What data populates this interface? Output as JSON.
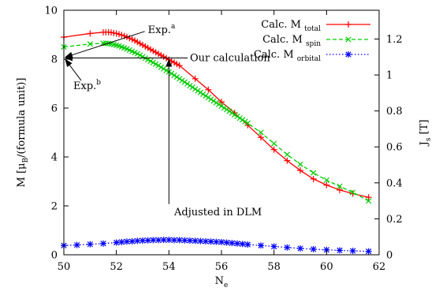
{
  "chart_data": {
    "type": "line",
    "xlabel": "N",
    "xlabel_sub": "e",
    "ylabel": "M [μ",
    "ylabel_sub": "B",
    "ylabel_tail": "/(formula unit)]",
    "y2label": "J",
    "y2label_sub": "s",
    "y2label_tail": " [T]",
    "xlim": [
      50,
      62
    ],
    "ylim": [
      0,
      10
    ],
    "y2lim": [
      0,
      1.36
    ],
    "xticks": [
      50,
      52,
      54,
      56,
      58,
      60,
      62
    ],
    "yticks": [
      0,
      2,
      4,
      6,
      8,
      10
    ],
    "y2ticks": [
      0,
      0.2,
      0.4,
      0.6,
      0.8,
      1,
      1.2
    ],
    "y2ticklabels": [
      "0",
      "0.2",
      "0.4",
      "0.6",
      "0.8",
      "1",
      "1.2"
    ],
    "grid": false,
    "legend_position": "top-right",
    "series": [
      {
        "name": "Calc. M",
        "name_sub": "total",
        "color": "#ff0000",
        "marker": "plus",
        "dash": "solid",
        "x": [
          50,
          51,
          51.5,
          51.6,
          51.7,
          51.8,
          51.9,
          52,
          52.1,
          52.2,
          52.3,
          52.4,
          52.5,
          52.6,
          52.7,
          52.8,
          52.9,
          53,
          53.1,
          53.2,
          53.3,
          53.4,
          53.5,
          53.6,
          53.7,
          53.8,
          53.9,
          54,
          54.1,
          54.2,
          54.3,
          54.4,
          55,
          55.5,
          56,
          56.5,
          57,
          57.5,
          58,
          58.5,
          59,
          59.5,
          60,
          60.5,
          61,
          61.6
        ],
        "y": [
          8.9,
          9.05,
          9.1,
          9.1,
          9.1,
          9.09,
          9.07,
          9.05,
          9.02,
          8.99,
          8.95,
          8.91,
          8.86,
          8.81,
          8.76,
          8.7,
          8.64,
          8.58,
          8.52,
          8.46,
          8.4,
          8.34,
          8.28,
          8.22,
          8.16,
          8.1,
          8.04,
          7.98,
          7.92,
          7.86,
          7.8,
          7.74,
          7.2,
          6.75,
          6.25,
          5.8,
          5.3,
          4.8,
          4.3,
          3.85,
          3.45,
          3.1,
          2.85,
          2.65,
          2.5,
          2.35
        ]
      },
      {
        "name": "Calc. M",
        "name_sub": "spin",
        "color": "#00cc00",
        "marker": "cross",
        "dash": "dashed",
        "x": [
          50,
          51,
          51.5,
          51.6,
          51.7,
          51.8,
          51.9,
          52,
          52.1,
          52.2,
          52.3,
          52.4,
          52.5,
          52.6,
          52.7,
          52.8,
          52.9,
          53,
          53.1,
          53.2,
          53.3,
          53.4,
          53.5,
          53.6,
          53.7,
          53.8,
          53.9,
          54,
          54.1,
          54.2,
          54.3,
          54.4,
          54.5,
          54.6,
          54.7,
          54.8,
          54.9,
          55,
          55.1,
          55.2,
          55.3,
          55.4,
          55.5,
          55.6,
          55.7,
          55.8,
          55.9,
          56,
          56.1,
          56.2,
          56.3,
          56.4,
          56.5,
          56.6,
          56.7,
          56.8,
          56.9,
          57,
          57.5,
          58,
          58.5,
          59,
          59.5,
          60,
          60.5,
          61,
          61.6
        ],
        "y": [
          8.5,
          8.62,
          8.65,
          8.65,
          8.64,
          8.62,
          8.6,
          8.57,
          8.54,
          8.5,
          8.46,
          8.42,
          8.37,
          8.32,
          8.27,
          8.22,
          8.16,
          8.1,
          8.04,
          7.98,
          7.92,
          7.86,
          7.8,
          7.74,
          7.67,
          7.61,
          7.54,
          7.48,
          7.41,
          7.34,
          7.27,
          7.2,
          7.13,
          7.06,
          6.99,
          6.92,
          6.85,
          6.78,
          6.71,
          6.64,
          6.57,
          6.5,
          6.43,
          6.36,
          6.29,
          6.22,
          6.15,
          6.08,
          6.01,
          5.94,
          5.87,
          5.8,
          5.73,
          5.66,
          5.59,
          5.52,
          5.45,
          5.38,
          5.0,
          4.55,
          4.1,
          3.7,
          3.35,
          3.05,
          2.8,
          2.55,
          2.2
        ]
      },
      {
        "name": "Calc. M",
        "name_sub": "orbital",
        "color": "#0000ff",
        "marker": "star",
        "dash": "dotted",
        "x": [
          50,
          50.5,
          51,
          51.5,
          52,
          52.2,
          52.4,
          52.6,
          52.8,
          53,
          53.2,
          53.4,
          53.6,
          53.8,
          54,
          54.2,
          54.4,
          54.6,
          54.8,
          55,
          55.2,
          55.4,
          55.6,
          55.8,
          56,
          56.2,
          56.4,
          56.6,
          56.8,
          57,
          57.5,
          58,
          58.5,
          59,
          59.5,
          60,
          60.5,
          61,
          61.6
        ],
        "y": [
          0.38,
          0.4,
          0.43,
          0.46,
          0.5,
          0.52,
          0.54,
          0.55,
          0.57,
          0.58,
          0.59,
          0.6,
          0.6,
          0.61,
          0.61,
          0.6,
          0.6,
          0.59,
          0.58,
          0.57,
          0.56,
          0.55,
          0.54,
          0.53,
          0.52,
          0.5,
          0.48,
          0.46,
          0.44,
          0.42,
          0.38,
          0.34,
          0.3,
          0.26,
          0.23,
          0.2,
          0.18,
          0.16,
          0.14
        ]
      }
    ],
    "annotations": [
      {
        "text": "Exp.",
        "sup": "a",
        "point": [
          50,
          8.05
        ],
        "text_anchor": [
          53.2,
          9.2
        ]
      },
      {
        "text": "Exp.",
        "sup": "b",
        "point": [
          50,
          8.05
        ],
        "text_anchor": [
          50.6,
          6.9
        ]
      },
      {
        "text": "Our calculation",
        "point": [
          50,
          8.05
        ],
        "corner": [
          54,
          8.05
        ],
        "text_anchor": [
          54.8,
          8.05
        ]
      },
      {
        "text": "Adjusted in DLM",
        "point": [
          54,
          8.05
        ],
        "text_anchor": [
          54.2,
          1.75
        ]
      }
    ]
  }
}
